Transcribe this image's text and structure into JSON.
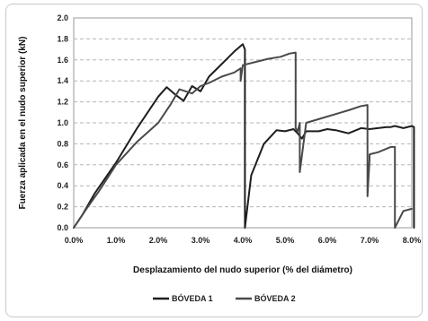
{
  "chart_data": {
    "type": "line",
    "xlabel": "Desplazamiento del nudo superior (% del diámetro)",
    "ylabel": "Fuerza aplicada en el nudo superior (kN)",
    "xlim": [
      0,
      8
    ],
    "ylim": [
      0,
      2
    ],
    "x_ticks": [
      "0.0%",
      "1.0%",
      "2.0%",
      "3.0%",
      "4.0%",
      "5.0%",
      "6.0%",
      "7.0%",
      "8.0%"
    ],
    "y_ticks": [
      "0.0",
      "0.2",
      "0.4",
      "0.6",
      "0.8",
      "1.0",
      "1.2",
      "1.4",
      "1.6",
      "1.8",
      "2.0"
    ],
    "grid": "horizontal-dashed",
    "legend_position": "bottom",
    "series": [
      {
        "name": "BÓVEDA 1",
        "color": "#1e1e1e",
        "x": [
          0.0,
          0.2,
          0.5,
          1.0,
          1.5,
          2.0,
          2.2,
          2.4,
          2.6,
          2.8,
          3.0,
          3.2,
          3.5,
          3.8,
          4.0,
          4.05,
          4.05,
          4.2,
          4.5,
          4.8,
          5.0,
          5.2,
          5.3,
          5.4,
          5.5,
          5.8,
          6.0,
          6.2,
          6.5,
          6.8,
          7.0,
          7.2,
          7.4,
          7.5,
          7.6,
          7.8,
          8.0,
          8.05,
          8.05
        ],
        "y": [
          0.0,
          0.12,
          0.33,
          0.62,
          0.95,
          1.25,
          1.34,
          1.27,
          1.21,
          1.35,
          1.3,
          1.44,
          1.56,
          1.68,
          1.75,
          1.7,
          0.0,
          0.5,
          0.8,
          0.93,
          0.92,
          0.94,
          0.9,
          0.85,
          0.92,
          0.92,
          0.94,
          0.93,
          0.9,
          0.95,
          0.94,
          0.95,
          0.96,
          0.96,
          0.97,
          0.95,
          0.97,
          0.96,
          0.0
        ]
      },
      {
        "name": "BÓVEDA 2",
        "color": "#4a4a4a",
        "x": [
          0.0,
          0.3,
          0.6,
          1.0,
          1.5,
          2.0,
          2.3,
          2.5,
          2.8,
          3.0,
          3.2,
          3.5,
          3.8,
          3.95,
          3.95,
          4.0,
          4.3,
          4.6,
          4.9,
          5.1,
          5.25,
          5.25,
          5.3,
          5.35,
          5.35,
          5.5,
          6.0,
          6.5,
          6.8,
          6.95,
          6.95,
          7.0,
          7.0,
          7.2,
          7.5,
          7.6,
          7.6,
          7.8,
          8.0
        ],
        "y": [
          0.0,
          0.18,
          0.35,
          0.6,
          0.82,
          1.0,
          1.18,
          1.32,
          1.28,
          1.35,
          1.38,
          1.44,
          1.48,
          1.52,
          1.4,
          1.55,
          1.58,
          1.61,
          1.63,
          1.66,
          1.67,
          0.95,
          0.92,
          1.0,
          0.53,
          1.0,
          1.06,
          1.12,
          1.16,
          1.17,
          0.3,
          0.65,
          0.7,
          0.72,
          0.77,
          0.77,
          0.0,
          0.16,
          0.18
        ]
      }
    ]
  }
}
